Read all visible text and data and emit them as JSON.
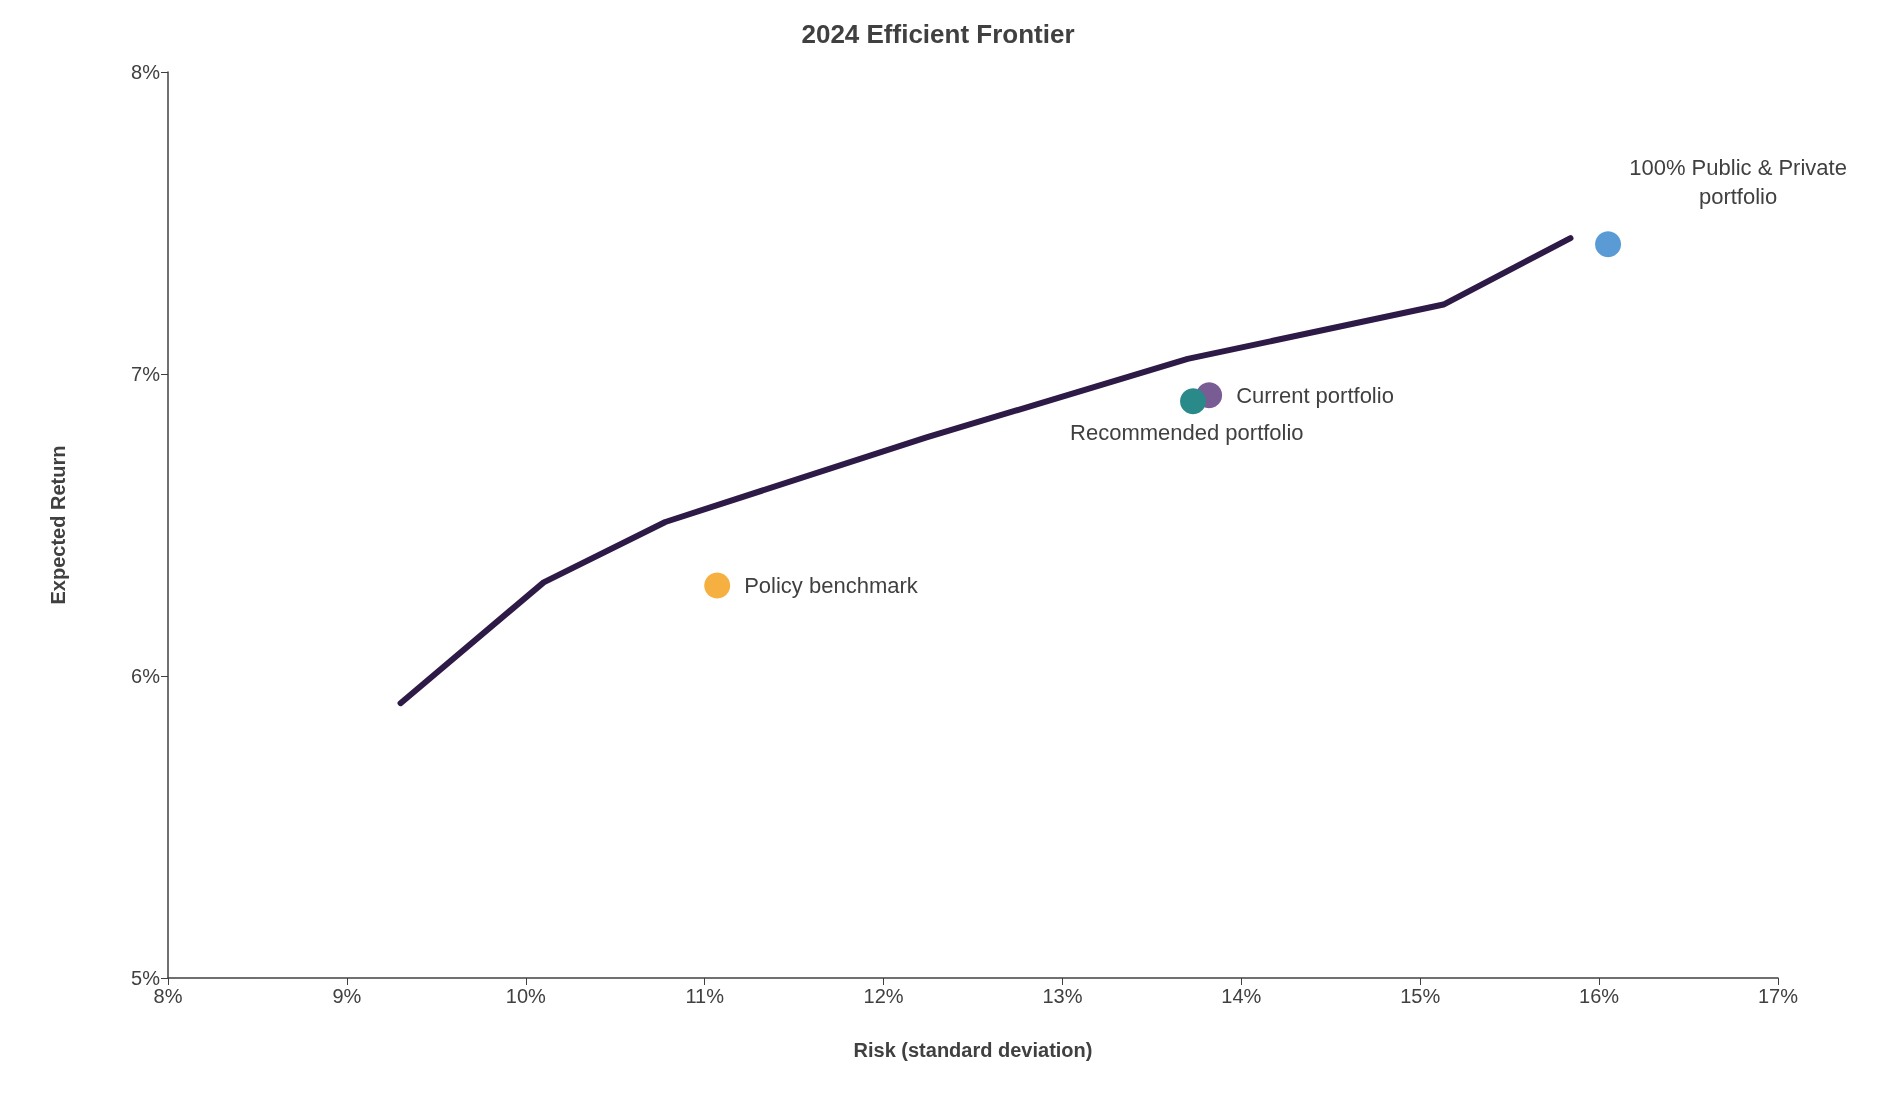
{
  "chart_data": {
    "type": "scatter",
    "title": "2024 Efficient Frontier",
    "xlabel": "Risk (standard deviation)",
    "ylabel": "Expected Return",
    "xlim": [
      8,
      17
    ],
    "xticks": [
      {
        "value": 8,
        "label": "8%"
      },
      {
        "value": 9,
        "label": "9%"
      },
      {
        "value": 10,
        "label": "10%"
      },
      {
        "value": 11,
        "label": "11%"
      },
      {
        "value": 12,
        "label": "12%"
      },
      {
        "value": 13,
        "label": "13%"
      },
      {
        "value": 14,
        "label": "14%"
      },
      {
        "value": 15,
        "label": "15%"
      },
      {
        "value": 16,
        "label": "16%"
      },
      {
        "value": 17,
        "label": "17%"
      }
    ],
    "ylim": [
      5,
      8
    ],
    "yticks": [
      {
        "value": 5,
        "label": "5%"
      },
      {
        "value": 6,
        "label": "6%"
      },
      {
        "value": 7,
        "label": "7%"
      },
      {
        "value": 8,
        "label": "8%"
      }
    ],
    "grid": false,
    "legend": false,
    "series": [
      {
        "type": "line",
        "color": "#2e1a47",
        "line_style": "solid",
        "marker": "none",
        "x": [
          9.3,
          10.1,
          10.78,
          12.24,
          13.7,
          15.13,
          15.84
        ],
        "values": [
          5.91,
          6.31,
          6.51,
          6.79,
          7.05,
          7.23,
          7.45
        ]
      },
      {
        "name": "Policy benchmark",
        "color": "#f5b041",
        "marker": "circle",
        "x": [
          11.07
        ],
        "values": [
          6.3
        ]
      },
      {
        "name": "Current portfolio",
        "color": "#7a5c94",
        "marker": "circle",
        "x": [
          13.82
        ],
        "values": [
          6.93
        ]
      },
      {
        "name": "Recommended portfolio",
        "color": "#2a8a8a",
        "marker": "circle",
        "x": [
          13.73
        ],
        "values": [
          6.91
        ]
      },
      {
        "name": "100% Public & Private\nportfolio",
        "color": "#5b9bd5",
        "marker": "circle",
        "x": [
          16.05
        ],
        "values": [
          7.43
        ]
      }
    ]
  }
}
